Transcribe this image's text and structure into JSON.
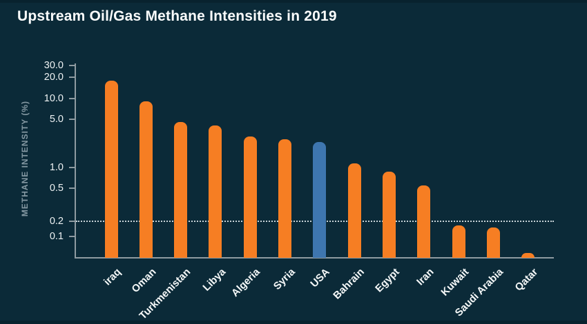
{
  "page": {
    "background_color": "#0b2a38"
  },
  "chart_data": {
    "type": "bar",
    "title": "Upstream Oil/Gas Methane Intensities in 2019",
    "ylabel": "METHANE INTENSITY (%)",
    "xlabel": "",
    "yscale": "log",
    "ylim": [
      0.05,
      40
    ],
    "grid": false,
    "legend": "none",
    "ytick_values": [
      30,
      20,
      10,
      5,
      1,
      0.5,
      0.2,
      0.1
    ],
    "ytick_labels": [
      "30.0",
      "20.0",
      "10.0",
      "5.0",
      "1.0",
      "0.5",
      "0.2",
      "0.1"
    ],
    "reference_line": {
      "value": 0.2,
      "style": "dotted"
    },
    "categories": [
      "iraq",
      "Oman",
      "Turkmenistan",
      "Libya",
      "Algeria",
      "Syria",
      "USA",
      "Bahrain",
      "Egypt",
      "Iran",
      "Kuwait",
      "Saudi Arabia",
      "Qatar"
    ],
    "values": [
      18.0,
      9.0,
      4.5,
      4.0,
      2.8,
      2.55,
      2.3,
      1.15,
      0.86,
      0.55,
      0.143,
      0.136,
      0.058
    ],
    "highlight_category": "USA",
    "highlight_index": 6,
    "colors": {
      "bar": "#f67e23",
      "highlight_bar": "#3e76af",
      "axis": "#8e9ba1",
      "tick_text": "#eef2f3",
      "category_text": "#f5f8f8",
      "title_text": "#fafcfc",
      "ylabel_text": "#8599a3",
      "reference_line": "#c9d4d8",
      "background": "#0b2a38"
    }
  }
}
